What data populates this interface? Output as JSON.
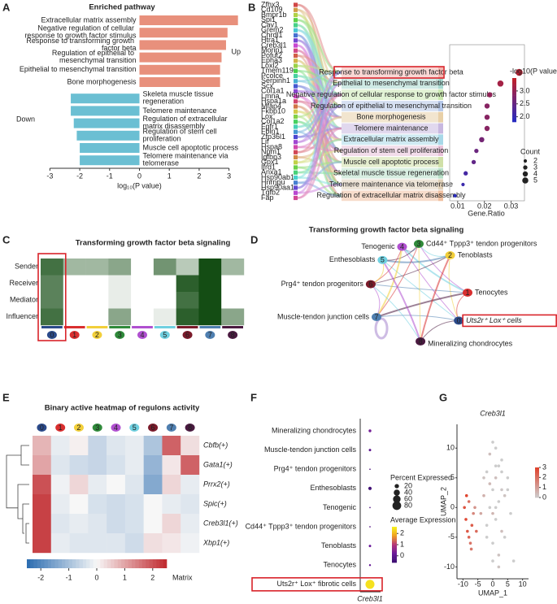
{
  "chart_data": [
    {
      "type": "bar",
      "panel": "A",
      "title": "Enriched pathway",
      "orientation": "horizontal",
      "categories": [
        "Extracellular matrix assembly",
        "Negative regulation of cellular response to growth factor stimulus",
        "Response to transforming growth factor beta",
        "Regulation of epithelial to mesenchymal transition",
        "Epithelial to mesenchymal transition",
        "Bone morphogenesis",
        "Skeleta muscle tissue regeneration",
        "Telomere maintenance",
        "Regulation of extracellular matrix disassembly",
        "Regulation of stem cell proliferation",
        "Muscle cell apoptotic process",
        "Telomere maintenance via telomerase"
      ],
      "values": [
        3.3,
        2.95,
        2.9,
        2.75,
        2.7,
        2.7,
        -2.3,
        -2.3,
        -2.2,
        -2.1,
        -2.0,
        -2.0
      ],
      "up_color": "#e8907c",
      "down_color": "#6bbfd3",
      "highlight": 2,
      "highlight_color": "#e04a3a",
      "annotations": [
        "Up",
        "Down"
      ],
      "xlabel": "log₁₀(P value)",
      "xlim": [
        -3.5,
        3.5
      ],
      "xticks": [
        -3,
        -2,
        -1,
        0,
        1,
        2,
        3
      ]
    },
    {
      "type": "dot",
      "panel": "B",
      "genes": [
        "Zfhx3",
        "Cd109",
        "Bmpr1b",
        "Spi1",
        "Cav1",
        "Grem2",
        "Chrdl1",
        "Htra1",
        "Creb3l1",
        "Morip1",
        "Pofut2",
        "Epha3",
        "Loxl2",
        "Tmem119",
        "Pcolce",
        "Serpinh1",
        "Scx",
        "Col1a1",
        "Lmna",
        "Hspa1a",
        "Mfap4",
        "Fkbp10",
        "Lox",
        "Col1a2",
        "Fgfr1",
        "Fbln1",
        "Zfp36l1",
        "Lif",
        "Hspa8",
        "Npm1",
        "Igfbp3",
        "Gpx1",
        "Ifrd1",
        "Anxa1",
        "Hsp90ab1",
        "Hnrnpu",
        "Hsp90aa1",
        "Tgfb2",
        "Fap"
      ],
      "categories": [
        "Response to transforming growth factor beta",
        "Epithelial to mesenchymal transition",
        "Negative regulation of cellular response to growth factor stimulus",
        "Regulation of epithelial to mesenchymal transition",
        "Bone morphogenesis",
        "Telomere maintenance",
        "Extracellular matrix assembly",
        "Regulation of stem cell proliferation",
        "Muscle cell apoptotic process",
        "Skeletal muscle tissue regeneration",
        "Telomere maintenance via telomerase",
        "Regulation of extracellular matrix disassembly"
      ],
      "values": [
        0.033,
        0.026,
        0.022,
        0.021,
        0.021,
        0.021,
        0.019,
        0.017,
        0.016,
        0.013,
        0.012,
        0.009
      ],
      "color_values": [
        3.4,
        3.2,
        3.0,
        2.9,
        2.9,
        2.9,
        2.7,
        2.6,
        2.5,
        2.2,
        2.1,
        1.9
      ],
      "sizes": [
        6,
        5,
        4,
        4,
        4,
        4,
        4,
        3,
        3,
        3,
        2,
        2
      ],
      "highlight": 0,
      "xlabel": "Gene.Ratio",
      "xlim": [
        0.007,
        0.035
      ],
      "xticks": [
        0.01,
        0.02,
        0.03
      ],
      "color_title": "-log10(P value)",
      "clim": [
        1.8,
        3.5
      ],
      "color_ticks": [
        {
          "value": 2,
          "label": "2.0"
        },
        {
          "value": 2.5,
          "label": "2.5"
        },
        {
          "value": 3,
          "label": "3.0"
        }
      ],
      "low_color": "#1f2bc8",
      "high_color": "#c0202a",
      "size_title": "Count",
      "size_ticks": [
        2,
        3,
        4,
        5
      ]
    },
    {
      "type": "heatmap",
      "panel": "C",
      "title": "Transforming growth factor beta signaling",
      "rows": [
        "Sender",
        "Receiver",
        "Mediator",
        "Influencer"
      ],
      "categories": [
        "0",
        "1",
        "2",
        "3",
        "4",
        "5",
        "6",
        "7",
        "8"
      ],
      "category_colors": [
        "#2b4a8a",
        "#d92f2f",
        "#f2cf3a",
        "#2f8a3a",
        "#b050d0",
        "#6fd0e0",
        "#7a1a2a",
        "#4f7fb0",
        "#4a1a40"
      ],
      "values": [
        [
          0.8,
          0.4,
          0.4,
          0.5,
          0,
          0.6,
          0.3,
          1,
          0.4
        ],
        [
          0.7,
          0,
          0,
          0.1,
          0,
          0,
          0.9,
          1,
          0
        ],
        [
          0.7,
          0,
          0,
          0.1,
          0,
          0,
          0.8,
          1,
          0
        ],
        [
          0.8,
          0,
          0,
          0.5,
          0,
          0.1,
          0.9,
          1,
          0.5
        ]
      ],
      "clim": [
        0,
        1
      ],
      "low_color": "#ffffff",
      "high_color": "#144d14",
      "highlight": 0
    },
    {
      "type": "network",
      "panel": "D",
      "title": "Transforming growth factor beta signaling",
      "nodes": [
        {
          "id": "0",
          "label": "Uts2r⁺ Lox⁺ cells"
        },
        {
          "id": "1",
          "label": "Tenocytes"
        },
        {
          "id": "2",
          "label": "Tenoblasts"
        },
        {
          "id": "3",
          "label": "Cd44⁺ Tppp3⁺ tendon progenitors"
        },
        {
          "id": "4",
          "label": "Tenogenic"
        },
        {
          "id": "5",
          "label": "Enthesoblasts"
        },
        {
          "id": "6",
          "label": "Prg4⁺ tendon progenitors"
        },
        {
          "id": "7",
          "label": "Muscle-tendon junction cells"
        },
        {
          "id": "8",
          "label": "Mineralizing chondrocytes"
        }
      ],
      "highlight": 0
    },
    {
      "type": "heatmap",
      "panel": "E",
      "title": "Binary active heatmap of regulons activity",
      "rows": [
        "Cbfb(+)",
        "Gata1(+)",
        "Prrx2(+)",
        "Spic(+)",
        "Creb3l1(+)",
        "Xbp1(+)"
      ],
      "categories": [
        "0",
        "1",
        "2",
        "3",
        "4",
        "5",
        "6",
        "7",
        "8"
      ],
      "values": [
        [
          0.8,
          -0.2,
          0.1,
          -0.6,
          -0.3,
          -0.2,
          -0.9,
          1.8,
          0.3
        ],
        [
          1.0,
          -0.3,
          -0.5,
          -0.6,
          -0.4,
          -0.2,
          -1.2,
          0.2,
          1.8
        ],
        [
          2.0,
          -0.1,
          0.4,
          -0.2,
          0.0,
          -0.3,
          -1.4,
          0.4,
          -0.2
        ],
        [
          2.2,
          -0.2,
          0.0,
          -0.4,
          -0.5,
          -0.4,
          0.0,
          -0.2,
          -0.3
        ],
        [
          2.2,
          -0.3,
          -0.2,
          -0.3,
          -0.5,
          -0.4,
          0.0,
          0.4,
          -0.2
        ],
        [
          2.2,
          -0.2,
          -0.3,
          -0.3,
          -0.3,
          -0.5,
          0.3,
          0.2,
          -0.1
        ]
      ],
      "clim": [
        -2.5,
        2.5
      ],
      "color_ticks": [
        -2,
        -1,
        0,
        1,
        2
      ],
      "color_title": "Matrix",
      "low_color": "#2a6bb0",
      "mid_color": "#f7f7f7",
      "high_color": "#c0282d",
      "highlight_row": 4
    },
    {
      "type": "dot",
      "panel": "F",
      "categories": [
        "Mineralizing chondrocytes",
        "Muscle-tendon junction cells",
        "Prg4⁺ tendon progenitors",
        "Enthesoblasts",
        "Tenogenic",
        "Cd44⁺ Tppp3⁺ tendon progenitors",
        "Tenoblasts",
        "Tenocytes",
        "Uts2r⁺ Lox⁺ fibrotic cells"
      ],
      "values": [
        0.3,
        0.0,
        -0.3,
        -0.5,
        -0.2,
        -0.2,
        0.2,
        0.1,
        2.4
      ],
      "sizes": [
        8,
        6,
        2,
        12,
        2,
        2,
        6,
        4,
        85
      ],
      "xlabel": "Creb3l1",
      "size_title": "Percent Expressed",
      "size_ticks": [
        20,
        40,
        60,
        80
      ],
      "color_title": "Average Expression",
      "clim": [
        -0.6,
        2.6
      ],
      "color_ticks": [
        0,
        1,
        2
      ],
      "highlight": 8
    },
    {
      "type": "scatter",
      "panel": "G",
      "title": "Creb3l1",
      "xlabel": "UMAP_1",
      "ylabel": "UMAP_2",
      "xlim": [
        -12,
        12
      ],
      "ylim": [
        -12,
        14
      ],
      "xticks": [
        -10,
        -5,
        0,
        5,
        10
      ],
      "yticks": [
        -10,
        -5,
        0,
        5,
        10
      ],
      "x": [
        -9,
        -8.5,
        -8,
        -7.5,
        -9.5,
        -8,
        -7,
        -6.5,
        -8.8,
        -7.2,
        -6,
        -5.5,
        -3,
        -2,
        -1,
        0,
        1,
        2,
        3,
        4,
        -1,
        0,
        1,
        2,
        3,
        -2,
        0,
        2,
        4,
        5,
        1,
        -1,
        3,
        0,
        2,
        -3,
        1,
        6,
        7,
        0,
        -4,
        5,
        3,
        -2,
        1
      ],
      "y": [
        -2,
        -4,
        -5,
        -6,
        0,
        1,
        -3,
        -1,
        2,
        -7,
        0,
        -4,
        5,
        6,
        4,
        3,
        5,
        7,
        8,
        2,
        0,
        -1,
        -2,
        1,
        -4,
        -3,
        -6,
        -8,
        -5,
        3,
        10,
        9,
        6,
        -9,
        -10,
        2,
        0,
        -1,
        -9,
        11,
        -1,
        5,
        3,
        -5,
        7
      ],
      "values": [
        2.8,
        2.5,
        2.2,
        1.9,
        2.6,
        2.0,
        2.4,
        1.5,
        2.9,
        1.8,
        1.2,
        2.1,
        0.2,
        0,
        0.4,
        0,
        0.3,
        0,
        0,
        0.2,
        0,
        0.5,
        0,
        0,
        0.3,
        0,
        0,
        0.2,
        0,
        0,
        0,
        0.3,
        0,
        0,
        0.2,
        0.6,
        0,
        0,
        0,
        0,
        0.8,
        0,
        0.1,
        0,
        0
      ],
      "clim": [
        0,
        3
      ],
      "color_ticks": [
        0,
        1,
        2,
        3
      ],
      "low_color": "#cccccc",
      "high_color": "#e0402a"
    }
  ]
}
